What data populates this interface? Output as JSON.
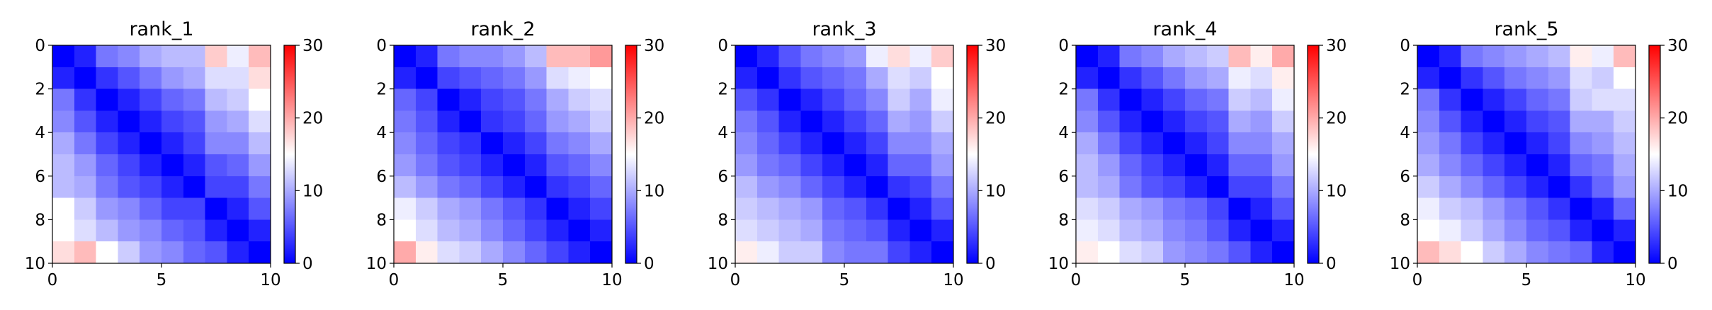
{
  "chart_data": [
    {
      "type": "heatmap",
      "title": "rank_1",
      "xlabel": "",
      "ylabel": "",
      "xlim": [
        0,
        10
      ],
      "ylim": [
        10,
        0
      ],
      "x_ticks": [
        "0",
        "5",
        "10"
      ],
      "y_ticks": [
        "0",
        "2",
        "4",
        "6",
        "8",
        "10"
      ],
      "colorbar": {
        "range": [
          0,
          30
        ],
        "ticks": [
          "0",
          "10",
          "20",
          "30"
        ],
        "colormap": "bwr"
      },
      "values": [
        [
          0,
          2,
          7,
          8,
          10,
          11,
          11,
          18,
          14,
          19
        ],
        [
          2,
          0,
          3,
          5,
          7,
          9,
          10,
          13,
          13,
          17
        ],
        [
          7,
          3,
          0,
          2,
          4,
          6,
          7,
          11,
          12,
          15
        ],
        [
          8,
          5,
          2,
          0,
          2,
          4,
          5,
          9,
          10,
          13
        ],
        [
          10,
          7,
          4,
          2,
          0,
          2,
          4,
          8,
          8,
          11
        ],
        [
          11,
          9,
          6,
          4,
          2,
          0,
          2,
          5,
          6,
          9
        ],
        [
          11,
          10,
          7,
          5,
          4,
          2,
          0,
          4,
          4,
          7
        ],
        [
          15,
          12,
          9,
          8,
          6,
          4,
          4,
          0,
          2,
          5
        ],
        [
          15,
          13,
          11,
          9,
          8,
          6,
          5,
          2,
          0,
          2
        ],
        [
          17,
          19,
          15,
          12,
          9,
          8,
          6,
          5,
          2,
          0
        ]
      ]
    },
    {
      "type": "heatmap",
      "title": "rank_2",
      "xlabel": "",
      "ylabel": "",
      "xlim": [
        0,
        10
      ],
      "ylim": [
        10,
        0
      ],
      "x_ticks": [
        "0",
        "5",
        "10"
      ],
      "y_ticks": [
        "0",
        "2",
        "4",
        "6",
        "8",
        "10"
      ],
      "colorbar": {
        "range": [
          0,
          30
        ],
        "ticks": [
          "0",
          "10",
          "20",
          "30"
        ],
        "colormap": "bwr"
      },
      "values": [
        [
          0,
          2,
          7,
          8,
          8,
          9,
          11,
          19,
          19,
          21
        ],
        [
          2,
          0,
          4,
          5,
          6,
          7,
          9,
          13,
          14,
          15
        ],
        [
          6,
          4,
          0,
          2,
          4,
          5,
          7,
          10,
          12,
          13
        ],
        [
          7,
          5,
          2,
          0,
          3,
          4,
          6,
          9,
          10,
          12
        ],
        [
          8,
          6,
          4,
          3,
          0,
          2,
          4,
          7,
          8,
          10
        ],
        [
          9,
          7,
          5,
          4,
          2,
          0,
          2,
          5,
          6,
          8
        ],
        [
          11,
          9,
          7,
          6,
          4,
          2,
          0,
          3,
          4,
          6
        ],
        [
          14,
          12,
          10,
          9,
          7,
          5,
          3,
          0,
          2,
          4
        ],
        [
          15,
          13,
          11,
          10,
          8,
          6,
          4,
          2,
          0,
          2
        ],
        [
          20,
          16,
          13,
          12,
          10,
          8,
          6,
          4,
          2,
          0
        ]
      ]
    },
    {
      "type": "heatmap",
      "title": "rank_3",
      "xlabel": "",
      "ylabel": "",
      "xlim": [
        0,
        10
      ],
      "ylim": [
        10,
        0
      ],
      "x_ticks": [
        "0",
        "5",
        "10"
      ],
      "y_ticks": [
        "0",
        "2",
        "4",
        "6",
        "8",
        "10"
      ],
      "colorbar": {
        "range": [
          0,
          30
        ],
        "ticks": [
          "0",
          "10",
          "20",
          "30"
        ],
        "colormap": "bwr"
      },
      "values": [
        [
          0,
          2,
          5,
          7,
          8,
          9,
          14,
          17,
          14,
          18
        ],
        [
          2,
          0,
          3,
          5,
          6,
          7,
          10,
          13,
          12,
          15
        ],
        [
          5,
          3,
          0,
          2,
          4,
          6,
          8,
          12,
          10,
          14
        ],
        [
          7,
          5,
          2,
          0,
          2,
          4,
          6,
          10,
          9,
          12
        ],
        [
          8,
          6,
          4,
          2,
          0,
          2,
          4,
          8,
          8,
          10
        ],
        [
          9,
          7,
          6,
          4,
          2,
          0,
          2,
          6,
          6,
          9
        ],
        [
          11,
          9,
          8,
          6,
          4,
          2,
          0,
          3,
          4,
          7
        ],
        [
          12,
          11,
          10,
          9,
          6,
          5,
          3,
          0,
          2,
          5
        ],
        [
          13,
          12,
          11,
          10,
          7,
          6,
          5,
          2,
          0,
          2
        ],
        [
          16,
          14,
          12,
          12,
          8,
          7,
          7,
          4,
          2,
          0
        ]
      ]
    },
    {
      "type": "heatmap",
      "title": "rank_4",
      "xlabel": "",
      "ylabel": "",
      "xlim": [
        0,
        10
      ],
      "ylim": [
        10,
        0
      ],
      "x_ticks": [
        "0",
        "5",
        "10"
      ],
      "y_ticks": [
        "0",
        "2",
        "4",
        "6",
        "8",
        "10"
      ],
      "colorbar": {
        "range": [
          0,
          30
        ],
        "ticks": [
          "0",
          "10",
          "20",
          "30"
        ],
        "colormap": "bwr"
      },
      "values": [
        [
          0,
          2,
          7,
          8,
          10,
          11,
          12,
          19,
          16,
          20
        ],
        [
          2,
          0,
          3,
          5,
          7,
          9,
          10,
          14,
          13,
          16
        ],
        [
          7,
          3,
          0,
          2,
          4,
          6,
          7,
          12,
          11,
          14
        ],
        [
          8,
          5,
          2,
          0,
          2,
          4,
          5,
          10,
          9,
          12
        ],
        [
          10,
          7,
          4,
          2,
          0,
          2,
          4,
          8,
          8,
          10
        ],
        [
          11,
          9,
          6,
          4,
          2,
          0,
          2,
          6,
          6,
          9
        ],
        [
          11,
          10,
          7,
          5,
          4,
          2,
          0,
          4,
          4,
          7
        ],
        [
          13,
          12,
          10,
          9,
          7,
          6,
          4,
          0,
          2,
          5
        ],
        [
          14,
          13,
          11,
          10,
          8,
          7,
          5,
          2,
          0,
          2
        ],
        [
          16,
          15,
          13,
          12,
          9,
          8,
          7,
          5,
          2,
          0
        ]
      ]
    },
    {
      "type": "heatmap",
      "title": "rank_5",
      "xlabel": "",
      "ylabel": "",
      "xlim": [
        0,
        10
      ],
      "ylim": [
        10,
        0
      ],
      "x_ticks": [
        "0",
        "5",
        "10"
      ],
      "y_ticks": [
        "0",
        "2",
        "4",
        "6",
        "8",
        "10"
      ],
      "colorbar": {
        "range": [
          0,
          30
        ],
        "ticks": [
          "0",
          "10",
          "20",
          "30"
        ],
        "colormap": "bwr"
      },
      "values": [
        [
          0,
          2,
          7,
          8,
          9,
          10,
          11,
          16,
          14,
          19
        ],
        [
          2,
          0,
          3,
          5,
          7,
          8,
          9,
          13,
          12,
          15
        ],
        [
          7,
          3,
          0,
          2,
          4,
          6,
          7,
          12,
          13,
          13
        ],
        [
          8,
          5,
          2,
          0,
          2,
          4,
          5,
          10,
          10,
          12
        ],
        [
          9,
          7,
          4,
          2,
          0,
          2,
          4,
          8,
          9,
          11
        ],
        [
          10,
          8,
          6,
          4,
          2,
          0,
          2,
          6,
          7,
          10
        ],
        [
          12,
          10,
          8,
          6,
          4,
          2,
          0,
          3,
          6,
          9
        ],
        [
          14,
          12,
          11,
          9,
          7,
          5,
          3,
          0,
          2,
          6
        ],
        [
          15,
          14,
          12,
          10,
          8,
          6,
          5,
          2,
          0,
          2
        ],
        [
          19,
          17,
          15,
          12,
          10,
          8,
          7,
          6,
          2,
          0
        ]
      ]
    }
  ]
}
